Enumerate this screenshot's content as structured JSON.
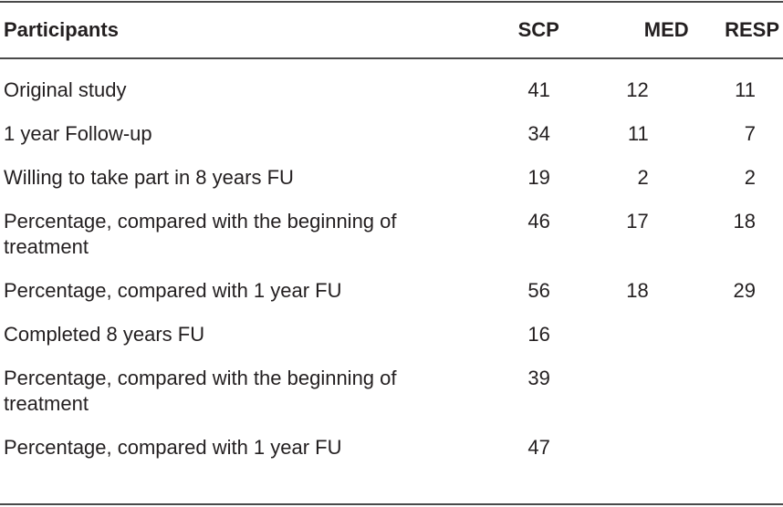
{
  "table": {
    "headers": [
      "Participants",
      "SCP",
      "MED",
      "RESP"
    ],
    "rows": [
      {
        "label": "Original study",
        "scp": "41",
        "med": "12",
        "resp": "11"
      },
      {
        "label": "1 year Follow-up",
        "scp": "34",
        "med": "11",
        "resp": "7"
      },
      {
        "label": "Willing to take part in 8 years FU",
        "scp": "19",
        "med": "2",
        "resp": "2"
      },
      {
        "label": "Percentage, compared with the beginning of treatment",
        "scp": "46",
        "med": "17",
        "resp": "18"
      },
      {
        "label": "Percentage, compared with 1 year FU",
        "scp": "56",
        "med": "18",
        "resp": "29"
      },
      {
        "label": "Completed 8 years FU",
        "scp": "16",
        "med": "",
        "resp": ""
      },
      {
        "label": "Percentage, compared with the beginning of treatment",
        "scp": "39",
        "med": "",
        "resp": ""
      },
      {
        "label": "Percentage, compared with 1 year FU",
        "scp": "47",
        "med": "",
        "resp": ""
      }
    ]
  }
}
